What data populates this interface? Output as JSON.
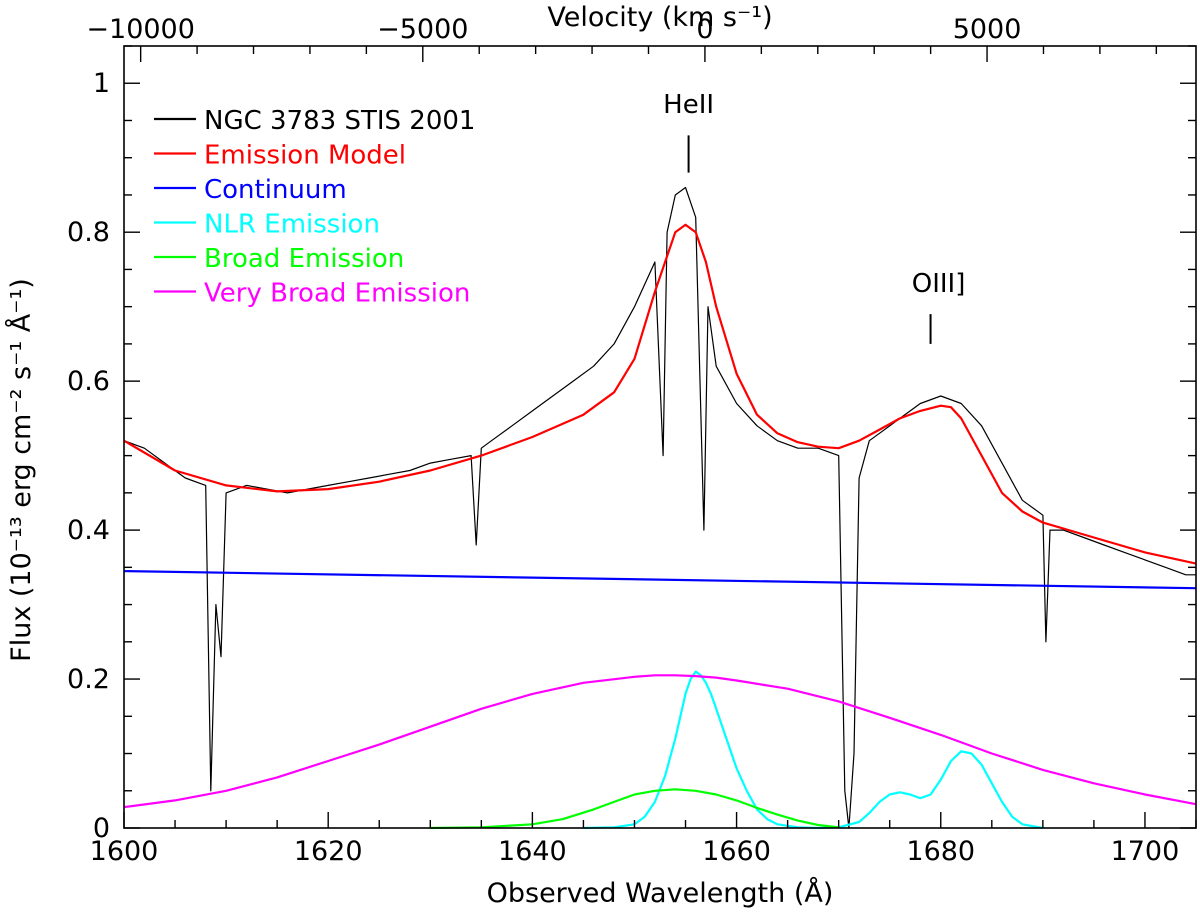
{
  "chart_data": {
    "type": "line",
    "title": "",
    "xlabel": "Observed Wavelength (Å)",
    "ylabel": "Flux (10⁻¹³ erg cm⁻² s⁻¹ Å⁻¹)",
    "top_xlabel": "Velocity (km s⁻¹)",
    "xlim": [
      1600,
      1705
    ],
    "ylim": [
      0,
      1.05
    ],
    "x_ticks": [
      1600,
      1620,
      1640,
      1660,
      1680,
      1700
    ],
    "x_tick_labels": [
      "1600",
      "1620",
      "1640",
      "1660",
      "1680",
      "1700"
    ],
    "y_ticks": [
      0,
      0.2,
      0.4,
      0.6,
      0.8,
      1
    ],
    "y_tick_labels": [
      "0",
      "0.2",
      "0.4",
      "0.6",
      "0.8",
      "1"
    ],
    "top_axis": {
      "rest_wavelength": 1656.9,
      "ticks": [
        -10000,
        -5000,
        0,
        5000
      ],
      "tick_labels": [
        "−10000",
        "−5000",
        "0",
        "5000"
      ]
    },
    "grid": false,
    "legend_position": "top-left",
    "series": [
      {
        "name": "NGC 3783 STIS 2001",
        "color": "#000000",
        "x": [
          1600,
          1602,
          1604,
          1606,
          1608,
          1608.5,
          1609,
          1609.5,
          1610,
          1612,
          1614,
          1616,
          1618,
          1620,
          1622,
          1624,
          1626,
          1628,
          1630,
          1632,
          1634,
          1634.5,
          1635,
          1636,
          1638,
          1640,
          1642,
          1644,
          1646,
          1648,
          1650,
          1652,
          1652.8,
          1653.2,
          1654,
          1655,
          1656,
          1656.8,
          1657.2,
          1658,
          1660,
          1662,
          1664,
          1666,
          1668,
          1670,
          1670.6,
          1671,
          1671.5,
          1672,
          1673,
          1674,
          1676,
          1678,
          1680,
          1682,
          1684,
          1686,
          1688,
          1690,
          1690.3,
          1690.7,
          1692,
          1694,
          1696,
          1698,
          1700,
          1702,
          1704,
          1705
        ],
        "y": [
          0.52,
          0.51,
          0.49,
          0.47,
          0.46,
          0.05,
          0.3,
          0.23,
          0.45,
          0.46,
          0.455,
          0.45,
          0.455,
          0.46,
          0.465,
          0.47,
          0.475,
          0.48,
          0.49,
          0.495,
          0.5,
          0.38,
          0.51,
          0.52,
          0.54,
          0.56,
          0.58,
          0.6,
          0.62,
          0.65,
          0.7,
          0.76,
          0.5,
          0.8,
          0.85,
          0.86,
          0.82,
          0.4,
          0.7,
          0.62,
          0.57,
          0.54,
          0.52,
          0.51,
          0.51,
          0.5,
          0.05,
          0.0,
          0.1,
          0.47,
          0.52,
          0.53,
          0.55,
          0.57,
          0.58,
          0.57,
          0.54,
          0.49,
          0.44,
          0.42,
          0.25,
          0.4,
          0.4,
          0.39,
          0.38,
          0.37,
          0.36,
          0.35,
          0.34,
          0.34
        ]
      },
      {
        "name": "Emission Model",
        "color": "#ff0000",
        "x": [
          1600,
          1605,
          1610,
          1615,
          1620,
          1625,
          1630,
          1635,
          1640,
          1645,
          1648,
          1650,
          1652,
          1654,
          1655,
          1656,
          1657,
          1658,
          1660,
          1662,
          1664,
          1666,
          1668,
          1670,
          1672,
          1674,
          1676,
          1678,
          1680,
          1681,
          1682,
          1684,
          1686,
          1688,
          1690,
          1695,
          1700,
          1705
        ],
        "y": [
          0.52,
          0.48,
          0.46,
          0.452,
          0.455,
          0.465,
          0.48,
          0.5,
          0.525,
          0.555,
          0.585,
          0.63,
          0.72,
          0.8,
          0.81,
          0.8,
          0.76,
          0.7,
          0.61,
          0.555,
          0.53,
          0.518,
          0.512,
          0.51,
          0.52,
          0.535,
          0.55,
          0.56,
          0.567,
          0.565,
          0.55,
          0.5,
          0.45,
          0.425,
          0.41,
          0.39,
          0.37,
          0.355
        ]
      },
      {
        "name": "Continuum",
        "color": "#0000ff",
        "x": [
          1600,
          1705
        ],
        "y": [
          0.345,
          0.322
        ]
      },
      {
        "name": "NLR Emission",
        "color": "#00ffff",
        "x": [
          1645,
          1648,
          1650,
          1651,
          1652,
          1653,
          1654,
          1654.5,
          1655,
          1655.5,
          1656,
          1656.5,
          1657,
          1657.5,
          1658,
          1659,
          1660,
          1661,
          1662,
          1663,
          1664,
          1666,
          1668,
          1670,
          1672,
          1673,
          1674,
          1675,
          1676,
          1677,
          1678,
          1679,
          1680,
          1681,
          1682,
          1683,
          1684,
          1685,
          1686,
          1687,
          1688,
          1690
        ],
        "y": [
          0,
          0.001,
          0.005,
          0.015,
          0.035,
          0.07,
          0.12,
          0.15,
          0.18,
          0.2,
          0.21,
          0.205,
          0.195,
          0.18,
          0.16,
          0.12,
          0.08,
          0.05,
          0.025,
          0.012,
          0.005,
          0.001,
          0,
          0.001,
          0.008,
          0.02,
          0.035,
          0.045,
          0.048,
          0.045,
          0.04,
          0.045,
          0.065,
          0.09,
          0.103,
          0.1,
          0.085,
          0.06,
          0.035,
          0.015,
          0.005,
          0
        ]
      },
      {
        "name": "Broad Emission",
        "color": "#00ff00",
        "x": [
          1630,
          1635,
          1640,
          1643,
          1646,
          1648,
          1650,
          1652,
          1654,
          1656,
          1658,
          1660,
          1662,
          1664,
          1666,
          1668,
          1670
        ],
        "y": [
          0,
          0.001,
          0.005,
          0.012,
          0.025,
          0.035,
          0.045,
          0.05,
          0.052,
          0.05,
          0.045,
          0.037,
          0.027,
          0.018,
          0.01,
          0.004,
          0.001
        ]
      },
      {
        "name": "Very Broad Emission",
        "color": "#ff00ff",
        "x": [
          1600,
          1605,
          1610,
          1615,
          1620,
          1625,
          1630,
          1635,
          1640,
          1645,
          1650,
          1652,
          1654,
          1656,
          1658,
          1660,
          1665,
          1670,
          1675,
          1680,
          1685,
          1690,
          1695,
          1700,
          1705
        ],
        "y": [
          0.028,
          0.037,
          0.05,
          0.068,
          0.09,
          0.112,
          0.136,
          0.16,
          0.18,
          0.195,
          0.203,
          0.205,
          0.205,
          0.204,
          0.202,
          0.198,
          0.187,
          0.17,
          0.148,
          0.125,
          0.1,
          0.078,
          0.06,
          0.045,
          0.032
        ]
      }
    ],
    "annotations": [
      {
        "text": "HeII",
        "x": 1655.3,
        "y_label": 0.96,
        "tick_top": 0.93,
        "tick_bottom": 0.88
      },
      {
        "text": "OIII]",
        "x": 1679.0,
        "y_label": 0.72,
        "tick_top": 0.69,
        "tick_bottom": 0.65
      }
    ]
  }
}
